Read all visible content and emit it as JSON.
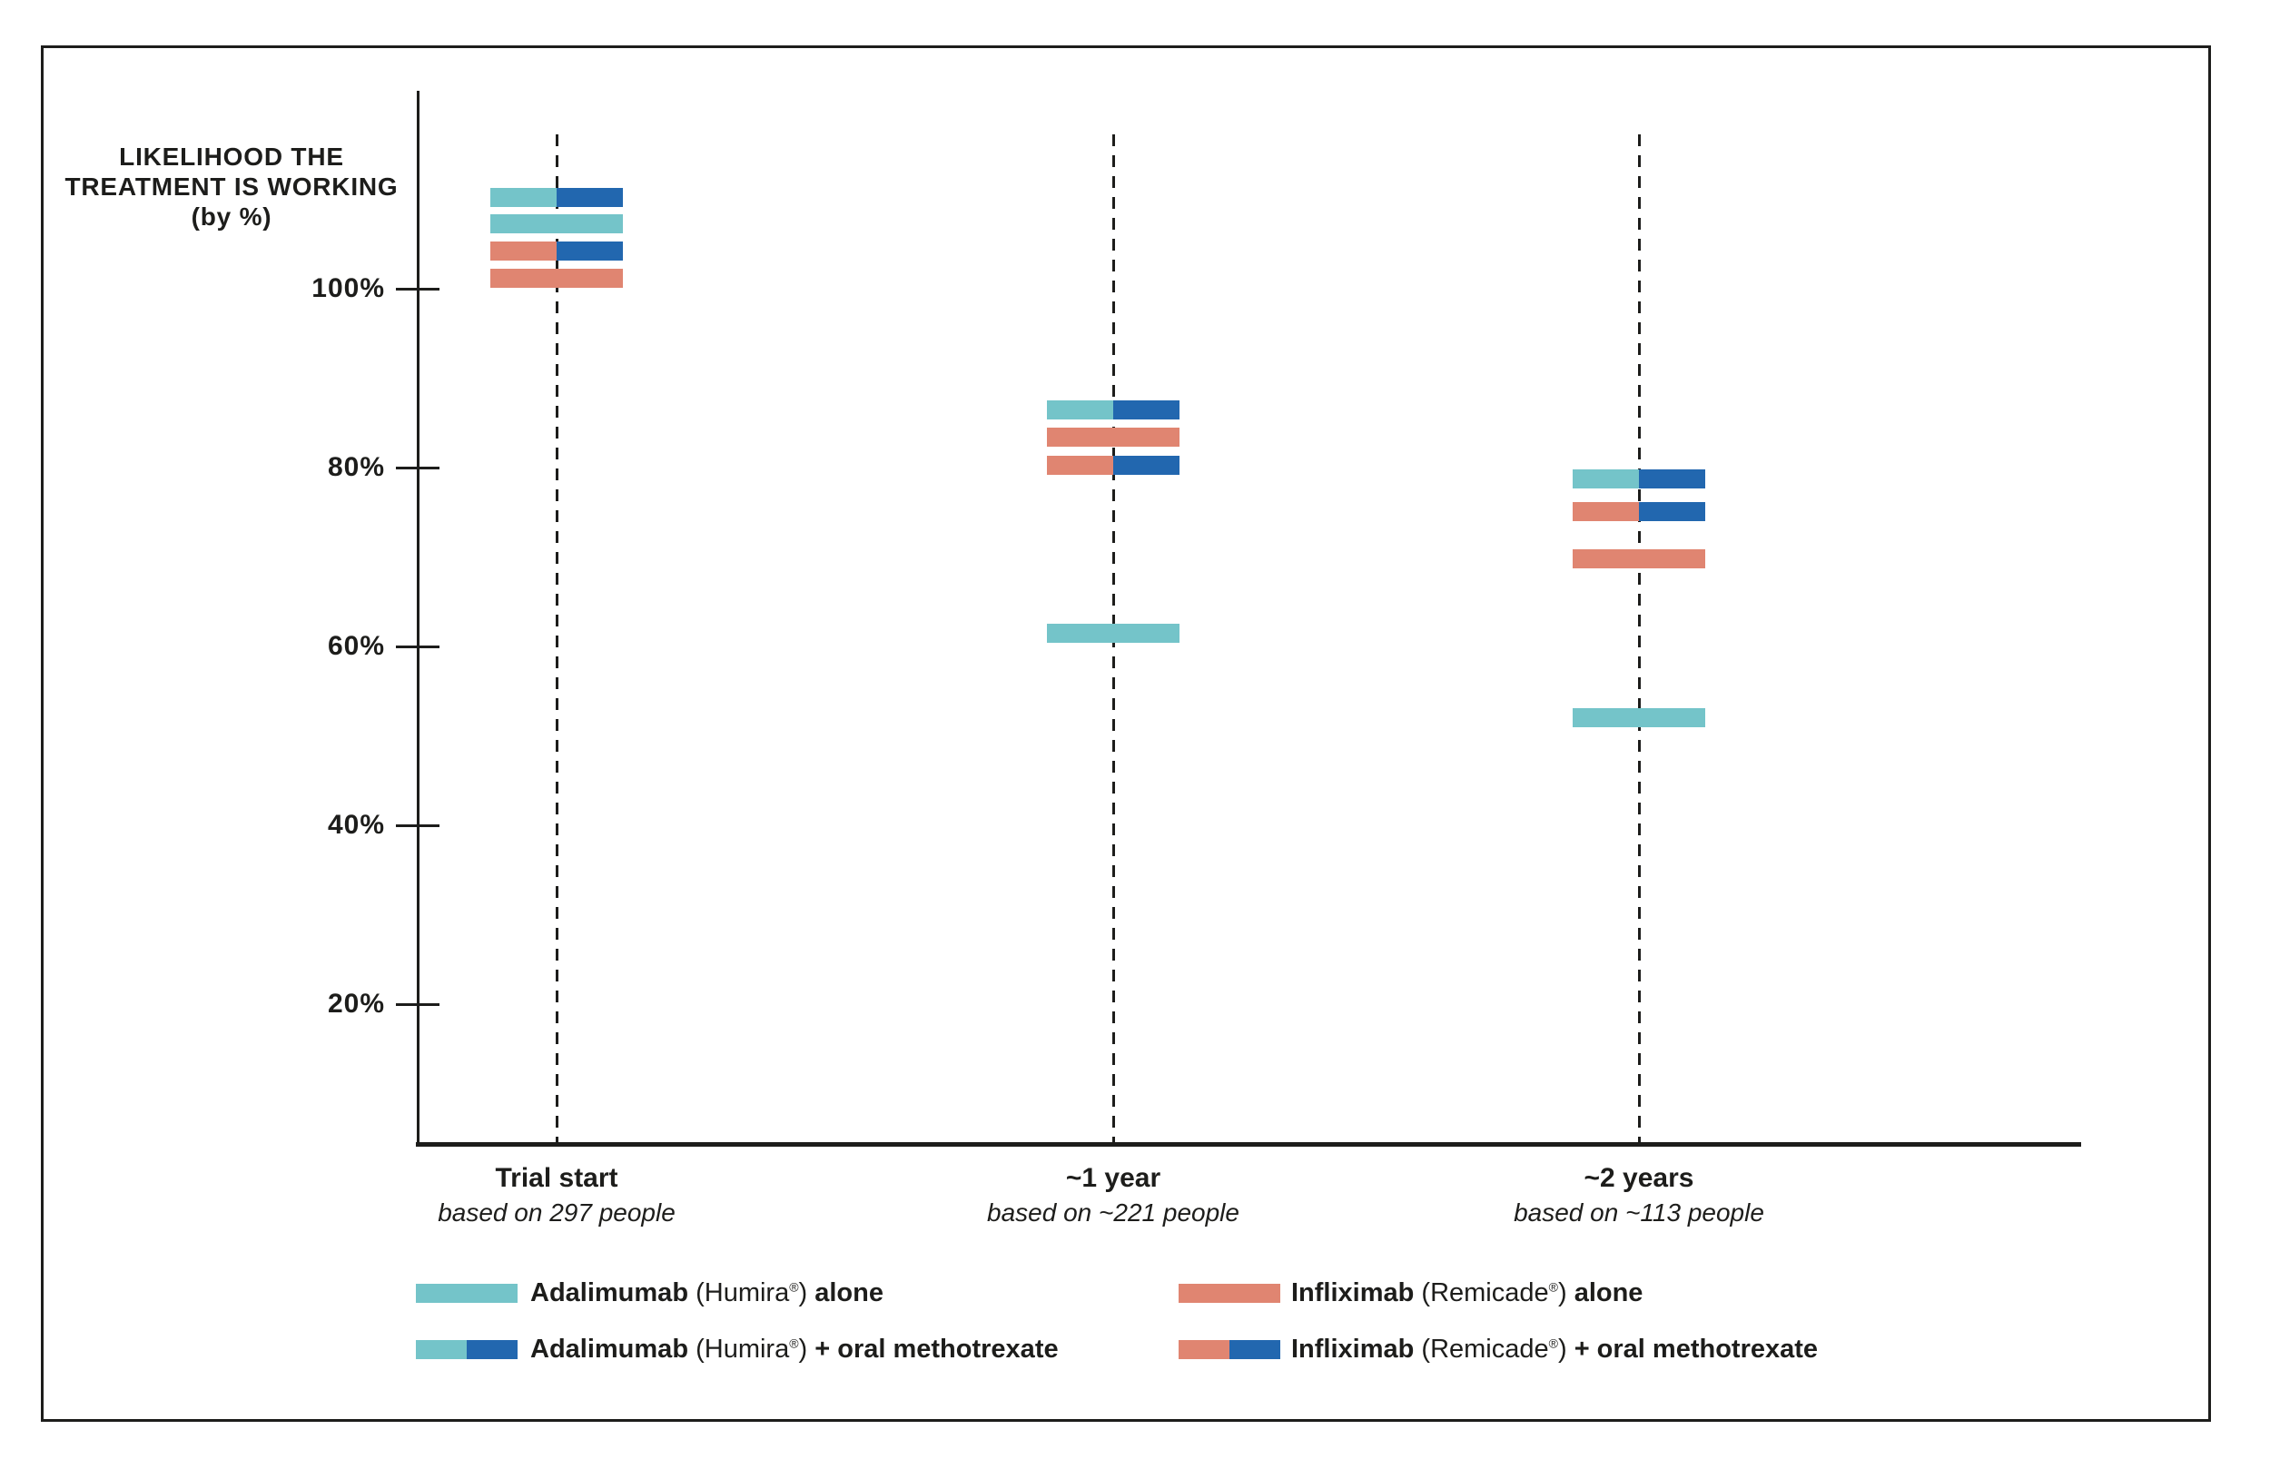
{
  "chart_data": {
    "type": "bar",
    "title": "LIKELIHOOD THE TREATMENT IS WORKING (by %)",
    "y_axis": {
      "ticks": [
        {
          "label": "100%",
          "value": 100
        },
        {
          "label": "80%",
          "value": 80
        },
        {
          "label": "60%",
          "value": 60
        },
        {
          "label": "40%",
          "value": 40
        },
        {
          "label": "20%",
          "value": 20
        }
      ],
      "visible_range": [
        4,
        122
      ],
      "grid": "dashed vertical line at each time point"
    },
    "x_axis": {
      "categories": [
        {
          "label": "Trial start",
          "sublabel": "based on 297 people"
        },
        {
          "label": "~1 year",
          "sublabel": "based on ~221 people"
        },
        {
          "label": "~2 years",
          "sublabel": "based on ~113 people"
        }
      ]
    },
    "colors": {
      "teal": "#74C4C9",
      "salmon": "#E08571",
      "blue": "#2267AF",
      "ink": "#1d1d1b"
    },
    "series": [
      {
        "id": "humira_alone",
        "name": "Adalimumab (Humira®) alone",
        "style": "solid",
        "swatch": [
          "teal"
        ],
        "values": [
          100,
          62,
          52
        ]
      },
      {
        "id": "humira_mtx",
        "name": "Adalimumab (Humira®) + oral methotrexate",
        "style": "split",
        "swatch": [
          "teal",
          "blue"
        ],
        "values": [
          100,
          86,
          79
        ]
      },
      {
        "id": "remicade_alone",
        "name": "Infliximab (Remicade®) alone",
        "style": "solid",
        "swatch": [
          "salmon"
        ],
        "values": [
          100,
          83,
          70
        ]
      },
      {
        "id": "remicade_mtx",
        "name": "Infliximab (Remicade®) + oral methotrexate",
        "style": "split",
        "swatch": [
          "salmon",
          "blue"
        ],
        "values": [
          100,
          80,
          75
        ]
      }
    ],
    "bars": [
      {
        "time_index": 0,
        "series": "humira_mtx",
        "value": 100,
        "display_pos": 110.2
      },
      {
        "time_index": 0,
        "series": "humira_alone",
        "value": 100,
        "display_pos": 107.3
      },
      {
        "time_index": 0,
        "series": "remicade_mtx",
        "value": 100,
        "display_pos": 104.2
      },
      {
        "time_index": 0,
        "series": "remicade_alone",
        "value": 100,
        "display_pos": 101.2
      },
      {
        "time_index": 1,
        "series": "humira_mtx",
        "value": 86,
        "display_pos": 86.4
      },
      {
        "time_index": 1,
        "series": "remicade_alone",
        "value": 83,
        "display_pos": 83.4
      },
      {
        "time_index": 1,
        "series": "remicade_mtx",
        "value": 80,
        "display_pos": 80.3
      },
      {
        "time_index": 1,
        "series": "humira_alone",
        "value": 62,
        "display_pos": 61.5
      },
      {
        "time_index": 2,
        "series": "humira_mtx",
        "value": 79,
        "display_pos": 78.7
      },
      {
        "time_index": 2,
        "series": "remicade_mtx",
        "value": 75,
        "display_pos": 75.1
      },
      {
        "time_index": 2,
        "series": "remicade_alone",
        "value": 70,
        "display_pos": 69.8
      },
      {
        "time_index": 2,
        "series": "humira_alone",
        "value": 52,
        "display_pos": 52.0
      }
    ],
    "legend": {
      "position": "bottom",
      "entries": [
        {
          "column": 0,
          "row": 0,
          "swatch": [
            "teal"
          ],
          "drug": "Adalimumab",
          "brand": "Humira",
          "suffix": "alone"
        },
        {
          "column": 0,
          "row": 1,
          "swatch": [
            "teal",
            "blue"
          ],
          "drug": "Adalimumab",
          "brand": "Humira",
          "suffix": "+ oral methotrexate"
        },
        {
          "column": 1,
          "row": 0,
          "swatch": [
            "salmon"
          ],
          "drug": "Infliximab",
          "brand": "Remicade",
          "suffix": "alone"
        },
        {
          "column": 1,
          "row": 1,
          "swatch": [
            "salmon",
            "blue"
          ],
          "drug": "Infliximab",
          "brand": "Remicade",
          "suffix": "+ oral methotrexate"
        }
      ]
    }
  }
}
